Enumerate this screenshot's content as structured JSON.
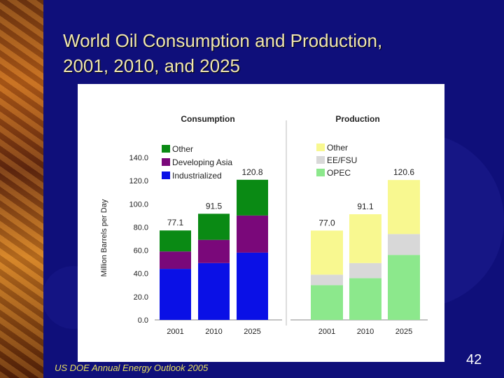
{
  "slide": {
    "title_line1": "World Oil Consumption and Production,",
    "title_line2": "2001, 2010, and 2025",
    "source": "US DOE Annual Energy Outlook 2005",
    "page_number": "42"
  },
  "colors": {
    "other_consumption": "#0a8a14",
    "developing_asia": "#7a087a",
    "industrialized": "#0a10e6",
    "other_production": "#f8f890",
    "ee_fsu": "#d8d8d8",
    "opec": "#8ce88c",
    "bg": "#0f0f7a"
  },
  "chart_data": [
    {
      "type": "bar",
      "stacked": true,
      "title": "Consumption",
      "ylabel": "Million Barrels per Day",
      "ylim": [
        0,
        140
      ],
      "yticks": [
        0,
        20,
        40,
        60,
        80,
        100,
        120,
        140
      ],
      "ytick_labels": [
        "0.0",
        "20.0",
        "40.0",
        "60.0",
        "80.0",
        "100.0",
        "120.0",
        "140.0"
      ],
      "categories": [
        "2001",
        "2010",
        "2025"
      ],
      "series": [
        {
          "name": "Industrialized",
          "values": [
            44,
            49,
            58
          ]
        },
        {
          "name": "Developing Asia",
          "values": [
            15,
            20,
            32
          ]
        },
        {
          "name": "Other",
          "values": [
            18.1,
            22.5,
            30.8
          ]
        }
      ],
      "totals": [
        "77.1",
        "91.5",
        "120.8"
      ],
      "legend": [
        "Other",
        "Developing Asia",
        "Industrialized"
      ]
    },
    {
      "type": "bar",
      "stacked": true,
      "title": "Production",
      "ylim": [
        0,
        140
      ],
      "categories": [
        "2001",
        "2010",
        "2025"
      ],
      "series": [
        {
          "name": "OPEC",
          "values": [
            30,
            36,
            56
          ]
        },
        {
          "name": "EE/FSU",
          "values": [
            9,
            13,
            18
          ]
        },
        {
          "name": "Other",
          "values": [
            38,
            42.1,
            46.6
          ]
        }
      ],
      "totals": [
        "77.0",
        "91.1",
        "120.6"
      ],
      "legend": [
        "Other",
        "EE/FSU",
        "OPEC"
      ]
    }
  ]
}
